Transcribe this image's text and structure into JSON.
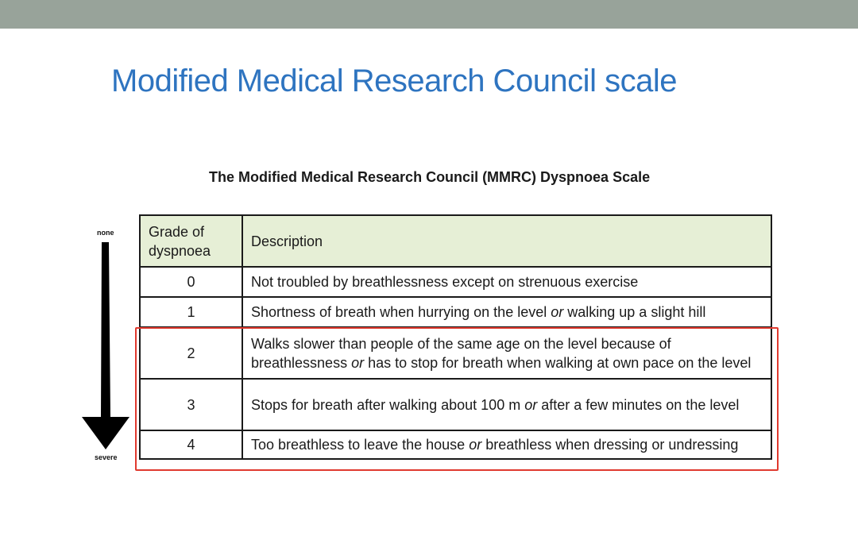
{
  "slide": {
    "title": "Modified Medical Research Council scale"
  },
  "figure": {
    "title": "The Modified Medical Research Council (MMRC) Dyspnoea Scale",
    "scale_top_label": "none",
    "scale_bottom_label": "severe",
    "highlight_color": "#e03a2f",
    "header_bg_color": "#e6efd6",
    "title_color": "#2e74c0"
  },
  "table": {
    "headers": {
      "grade": "Grade of dyspnoea",
      "description": "Description"
    },
    "rows": [
      {
        "grade": "0",
        "desc_parts": [
          "Not troubled by breathlessness except on strenuous exercise"
        ]
      },
      {
        "grade": "1",
        "desc_parts": [
          "Shortness of breath when hurrying on the level ",
          "or",
          " walking up a slight hill"
        ]
      },
      {
        "grade": "2",
        "desc_parts": [
          "Walks slower than people of the same age on the level because of breathlessness ",
          "or",
          " has to stop for breath when walking at own pace on the level"
        ]
      },
      {
        "grade": "3",
        "desc_parts": [
          "Stops for breath after walking about 100 m ",
          "or",
          " after a few minutes on the level"
        ]
      },
      {
        "grade": "4",
        "desc_parts": [
          "Too breathless to leave the house ",
          "or",
          " breathless when dressing or undressing"
        ]
      }
    ]
  }
}
